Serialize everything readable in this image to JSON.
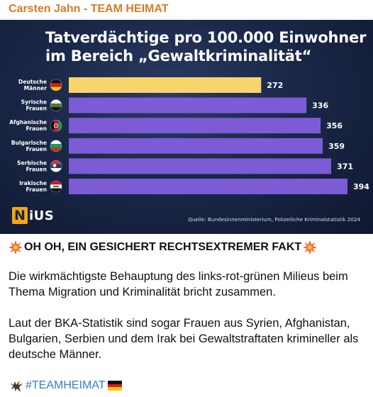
{
  "channel": {
    "name": "Carsten Jahn - TEAM HEIMAT",
    "color": "#d97a28"
  },
  "chart": {
    "title_line1": "Tatverdächtige pro 100.000 Einwohner",
    "title_line2": "im Bereich „Gewaltkriminalität“",
    "logo": {
      "letter": "N",
      "rest": "iUS"
    },
    "source": "Quelle: Bundesinnenministerium, Polizeiliche Kriminalstatistik 2024"
  },
  "chart_data": {
    "type": "bar",
    "orientation": "horizontal",
    "title": "Tatverdächtige pro 100.000 Einwohner im Bereich „Gewaltkriminalität“",
    "categories": [
      {
        "line1": "Deutsche",
        "line2": "Männer",
        "flag": "de"
      },
      {
        "line1": "Syrische",
        "line2": "Frauen",
        "flag": "sy"
      },
      {
        "line1": "Afghanische",
        "line2": "Frauen",
        "flag": "af"
      },
      {
        "line1": "Bulgarische",
        "line2": "Frauen",
        "flag": "bg"
      },
      {
        "line1": "Serbische",
        "line2": "Frauen",
        "flag": "rs"
      },
      {
        "line1": "Irakische",
        "line2": "Frauen",
        "flag": "iq"
      }
    ],
    "values": [
      272,
      336,
      356,
      359,
      371,
      394
    ],
    "colors": [
      "#f7d56a",
      "#7b5bd6",
      "#7b5bd6",
      "#7b5bd6",
      "#7b5bd6",
      "#7b5bd6"
    ],
    "xlim": [
      0,
      400
    ],
    "grid": false
  },
  "post": {
    "headline": "OH OH, EIN GESICHERT RECHTSEXTREMER FAKT",
    "paragraph1": "Die wirkmächtigste Behauptung des links-rot-grünen Milieus beim Thema Migration und Kriminalität bricht zusammen.",
    "paragraph2": "Laut der BKA-Statistik sind sogar Frauen aus Syrien, Afghanistan, Bulgarien, Serbien und dem Irak bei Gewaltstraftaten krimineller als deutsche Männer.",
    "hashtag": "#TEAMHEIMAT",
    "hashtag_color": "#2f7fcf",
    "icons": [
      "collision-icon",
      "eagle-icon",
      "germany-flag-icon"
    ]
  }
}
